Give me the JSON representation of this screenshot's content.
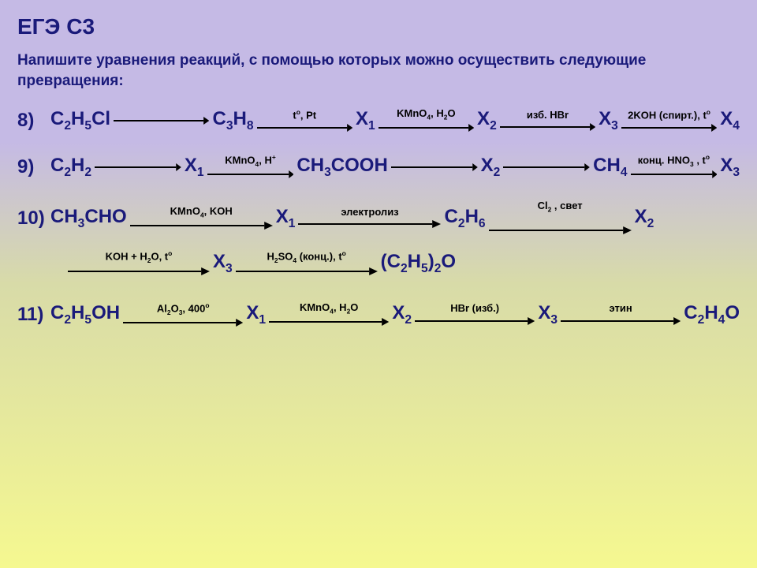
{
  "title": "ЕГЭ С3",
  "instruction": "Напишите уравнения реакций, с помощью которых можно осуществить следующие превращения:",
  "chains": {
    "c8": {
      "num": "8)",
      "steps": [
        {
          "cpd": "C<sub>2</sub>H<sub>5</sub>Cl",
          "cond": ""
        },
        {
          "cpd": "C<sub>3</sub>H<sub>8</sub>",
          "cond": "t<sup>o</sup>, Pt"
        },
        {
          "cpd": "X<sub>1</sub>",
          "cond": "KMnO<sub>4</sub>, H<sub>2</sub>O"
        },
        {
          "cpd": "X<sub>2</sub>",
          "cond": "изб. HBr"
        },
        {
          "cpd": "X<sub>3</sub>",
          "cond": "2KOH (спирт.), t<sup>o</sup>"
        },
        {
          "cpd": "X<sub>4</sub>",
          "cond": ""
        }
      ]
    },
    "c9": {
      "num": "9)",
      "steps": [
        {
          "cpd": "C<sub>2</sub>H<sub>2</sub>",
          "cond": ""
        },
        {
          "cpd": "X<sub>1</sub>",
          "cond": "KMnO<sub>4</sub>, H<sup>+</sup>"
        },
        {
          "cpd": "CH<sub>3</sub>COOH",
          "cond": ""
        },
        {
          "cpd": "X<sub>2</sub>",
          "cond": ""
        },
        {
          "cpd": "CH<sub>4</sub>",
          "cond": "конц. HNO<sub>3</sub> , t<sup>o</sup>"
        },
        {
          "cpd": "X<sub>3</sub>",
          "cond": ""
        }
      ]
    },
    "c10a": {
      "num": "10)",
      "steps": [
        {
          "cpd": "CH<sub>3</sub>CHO",
          "cond": "KMnO<sub>4</sub>, KOH"
        },
        {
          "cpd": "X<sub>1</sub>",
          "cond": "электролиз"
        },
        {
          "cpd": "C<sub>2</sub>H<sub>6</sub>",
          "cond": "Cl<sub>2</sub> , свет"
        },
        {
          "cpd": "X<sub>2</sub>",
          "cond": ""
        }
      ]
    },
    "c10b": {
      "steps": [
        {
          "cpd": "",
          "cond": "KOH + H<sub>2</sub>O, t<sup>o</sup>"
        },
        {
          "cpd": "X<sub>3</sub>",
          "cond": "H<sub>2</sub>SO<sub>4</sub> (конц.), t<sup>o</sup>"
        },
        {
          "cpd": "(C<sub>2</sub>H<sub>5</sub>)<sub>2</sub>O",
          "cond": ""
        }
      ]
    },
    "c11": {
      "num": "11)",
      "steps": [
        {
          "cpd": "C<sub>2</sub>H<sub>5</sub>OH",
          "cond": "Al<sub>2</sub>O<sub>3</sub>, 400<sup>o</sup>"
        },
        {
          "cpd": "X<sub>1</sub>",
          "cond": "KMnO<sub>4</sub>, H<sub>2</sub>O"
        },
        {
          "cpd": "X<sub>2</sub>",
          "cond": "HBr (изб.)"
        },
        {
          "cpd": "X<sub>3</sub>",
          "cond": "этин"
        },
        {
          "cpd": "C<sub>2</sub>H<sub>4</sub>O",
          "cond": ""
        }
      ]
    }
  },
  "colors": {
    "text": "#1a1a7a",
    "cond": "#000000",
    "arrow": "#000000"
  }
}
